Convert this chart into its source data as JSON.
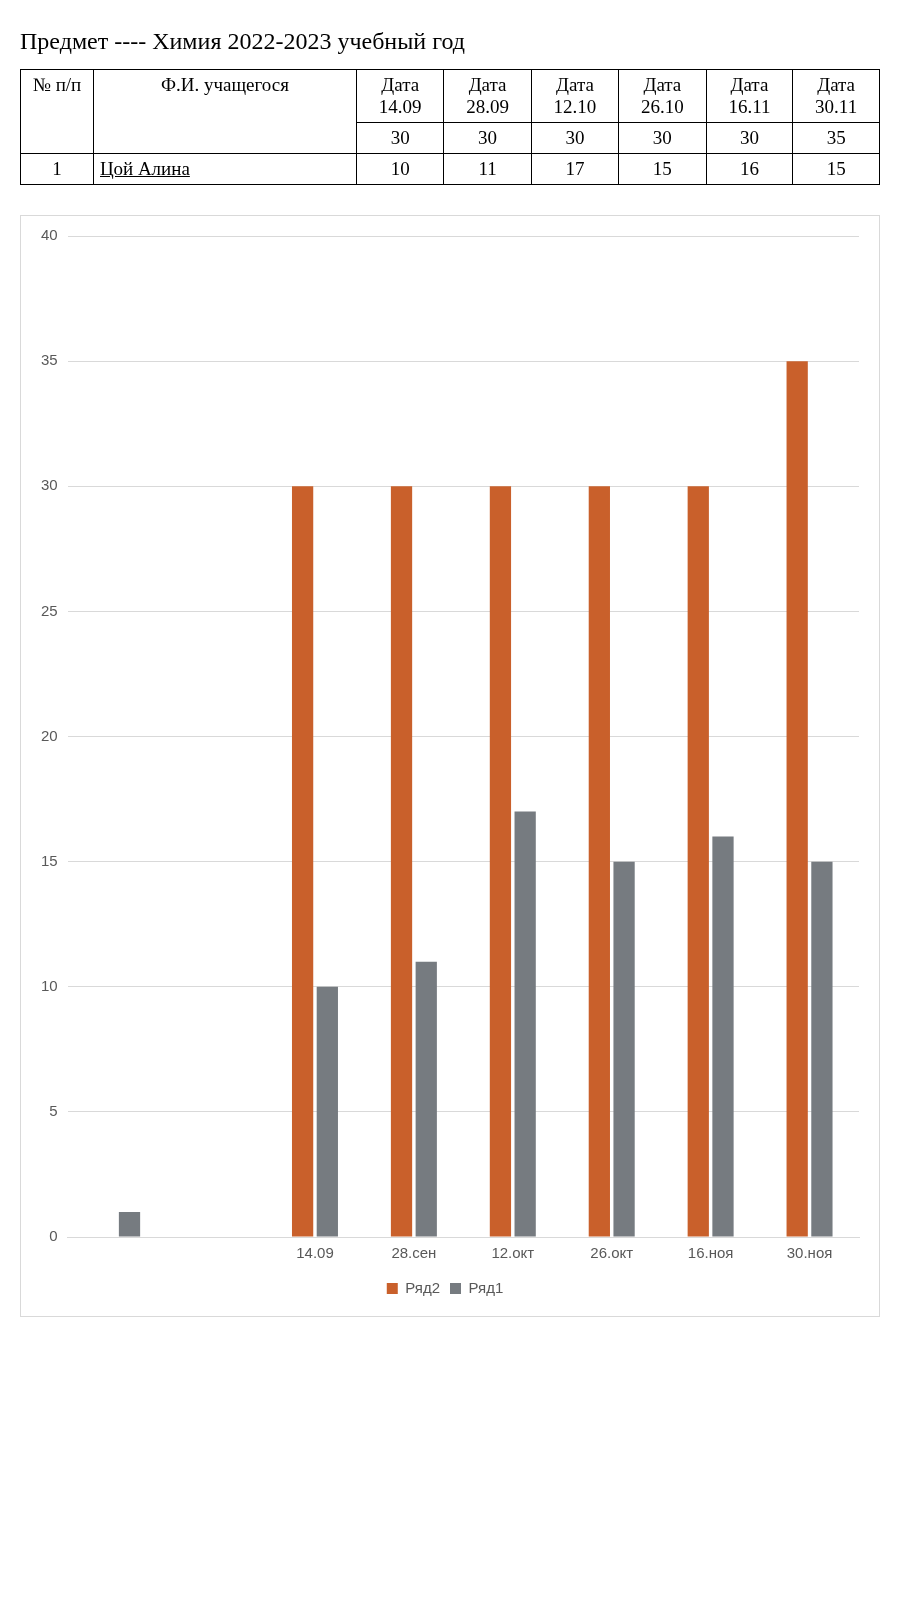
{
  "chart_data": {
    "type": "bar",
    "title": "Предмет ---- Химия 2022-2023 учебный год",
    "categories": [
      null,
      null,
      "14.09",
      "28.сен",
      "12.окт",
      "26.окт",
      "16.ноя",
      "30.ноя"
    ],
    "series": [
      {
        "name": "Ряд2",
        "color": "#c9602b",
        "values": [
          null,
          null,
          30,
          30,
          30,
          30,
          30,
          35
        ]
      },
      {
        "name": "Ряд1",
        "color": "#767b80",
        "values": [
          1,
          null,
          10,
          11,
          17,
          15,
          16,
          15
        ]
      }
    ],
    "ylim": [
      0,
      40
    ],
    "yticks": [
      0,
      5,
      10,
      15,
      20,
      25,
      30,
      35,
      40
    ],
    "grid": "y",
    "legend": "bottom",
    "annotations": [
      "№ п/п",
      "Ф.И. учащегося",
      "Дата 14.09",
      "Дата 28.09",
      "Дата 12.10",
      "Дата 26.10",
      "Дата 16.11",
      "Дата 30.11",
      "30",
      "30",
      "30",
      "30",
      "30",
      "35",
      "1",
      "Цой Алина",
      "10",
      "11",
      "17",
      "15",
      "16",
      "15"
    ]
  }
}
